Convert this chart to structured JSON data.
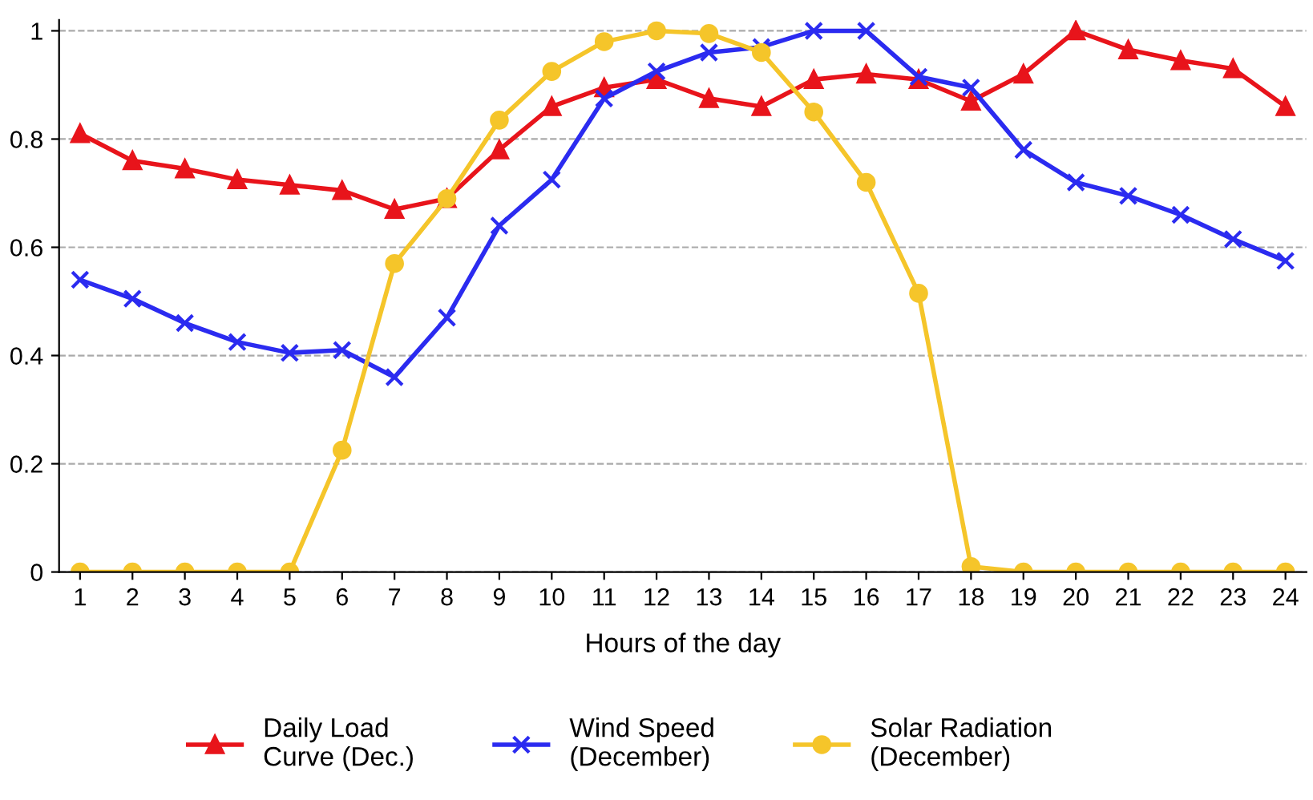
{
  "chart_data": {
    "type": "line",
    "xlabel": "Hours of the day",
    "x": [
      1,
      2,
      3,
      4,
      5,
      6,
      7,
      8,
      9,
      10,
      11,
      12,
      13,
      14,
      15,
      16,
      17,
      18,
      19,
      20,
      21,
      22,
      23,
      24
    ],
    "xlim": [
      0.6,
      24.4
    ],
    "xticks": [
      1,
      2,
      3,
      4,
      5,
      6,
      7,
      8,
      9,
      10,
      11,
      12,
      13,
      14,
      15,
      16,
      17,
      18,
      19,
      20,
      21,
      22,
      23,
      24
    ],
    "ylim": [
      0,
      1.02
    ],
    "yticks": [
      0,
      0.2,
      0.4,
      0.6,
      0.8,
      1
    ],
    "grid": "y",
    "legend": "bottom",
    "line_style": "solid",
    "series": [
      {
        "name": "Daily Load\nCurve (Dec.)",
        "color": "#e8141b",
        "marker": "triangle",
        "values": [
          0.81,
          0.76,
          0.745,
          0.725,
          0.715,
          0.705,
          0.67,
          0.69,
          0.78,
          0.86,
          0.895,
          0.91,
          0.875,
          0.86,
          0.91,
          0.92,
          0.91,
          0.87,
          0.92,
          1.0,
          0.965,
          0.945,
          0.93,
          0.86
        ]
      },
      {
        "name": "Wind Speed\n(December)",
        "color": "#2b2bf0",
        "marker": "cross",
        "values": [
          0.54,
          0.505,
          0.46,
          0.425,
          0.405,
          0.41,
          0.36,
          0.47,
          0.64,
          0.725,
          0.875,
          0.925,
          0.96,
          0.97,
          1.0,
          1.0,
          0.915,
          0.895,
          0.78,
          0.72,
          0.695,
          0.66,
          0.615,
          0.575
        ]
      },
      {
        "name": "Solar Radiation\n(December)",
        "color": "#f5c52a",
        "marker": "circle",
        "values": [
          0,
          0,
          0,
          0,
          0,
          0.225,
          0.57,
          0.69,
          0.835,
          0.925,
          0.98,
          1.0,
          0.995,
          0.96,
          0.85,
          0.72,
          0.515,
          0.01,
          0,
          0,
          0,
          0,
          0,
          0
        ]
      }
    ]
  }
}
